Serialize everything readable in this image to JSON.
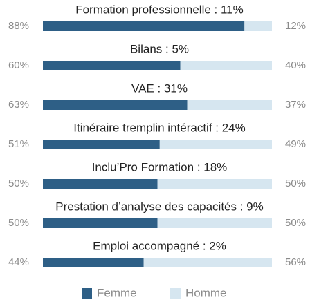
{
  "chart_data": {
    "type": "stacked-bar-horizontal",
    "categories": [
      "Formation professionnelle : 11%",
      "Bilans : 5%",
      "VAE : 31%",
      "Itinéraire tremplin intéractif : 24%",
      "Inclu’Pro Formation : 18%",
      "Prestation d’analyse des capacités : 9%",
      "Emploi accompagné : 2%"
    ],
    "series": [
      {
        "name": "Femme",
        "color": "#2e5f86",
        "values": [
          88,
          60,
          63,
          51,
          50,
          50,
          44
        ],
        "value_labels": [
          "88%",
          "60%",
          "63%",
          "51%",
          "50%",
          "50%",
          "44%"
        ]
      },
      {
        "name": "Homme",
        "color": "#d6e6f0",
        "values": [
          12,
          40,
          37,
          49,
          50,
          50,
          56
        ],
        "value_labels": [
          "12%",
          "40%",
          "37%",
          "49%",
          "50%",
          "50%",
          "56%"
        ]
      }
    ],
    "xlim": [
      0,
      100
    ],
    "legend": "bottom"
  }
}
